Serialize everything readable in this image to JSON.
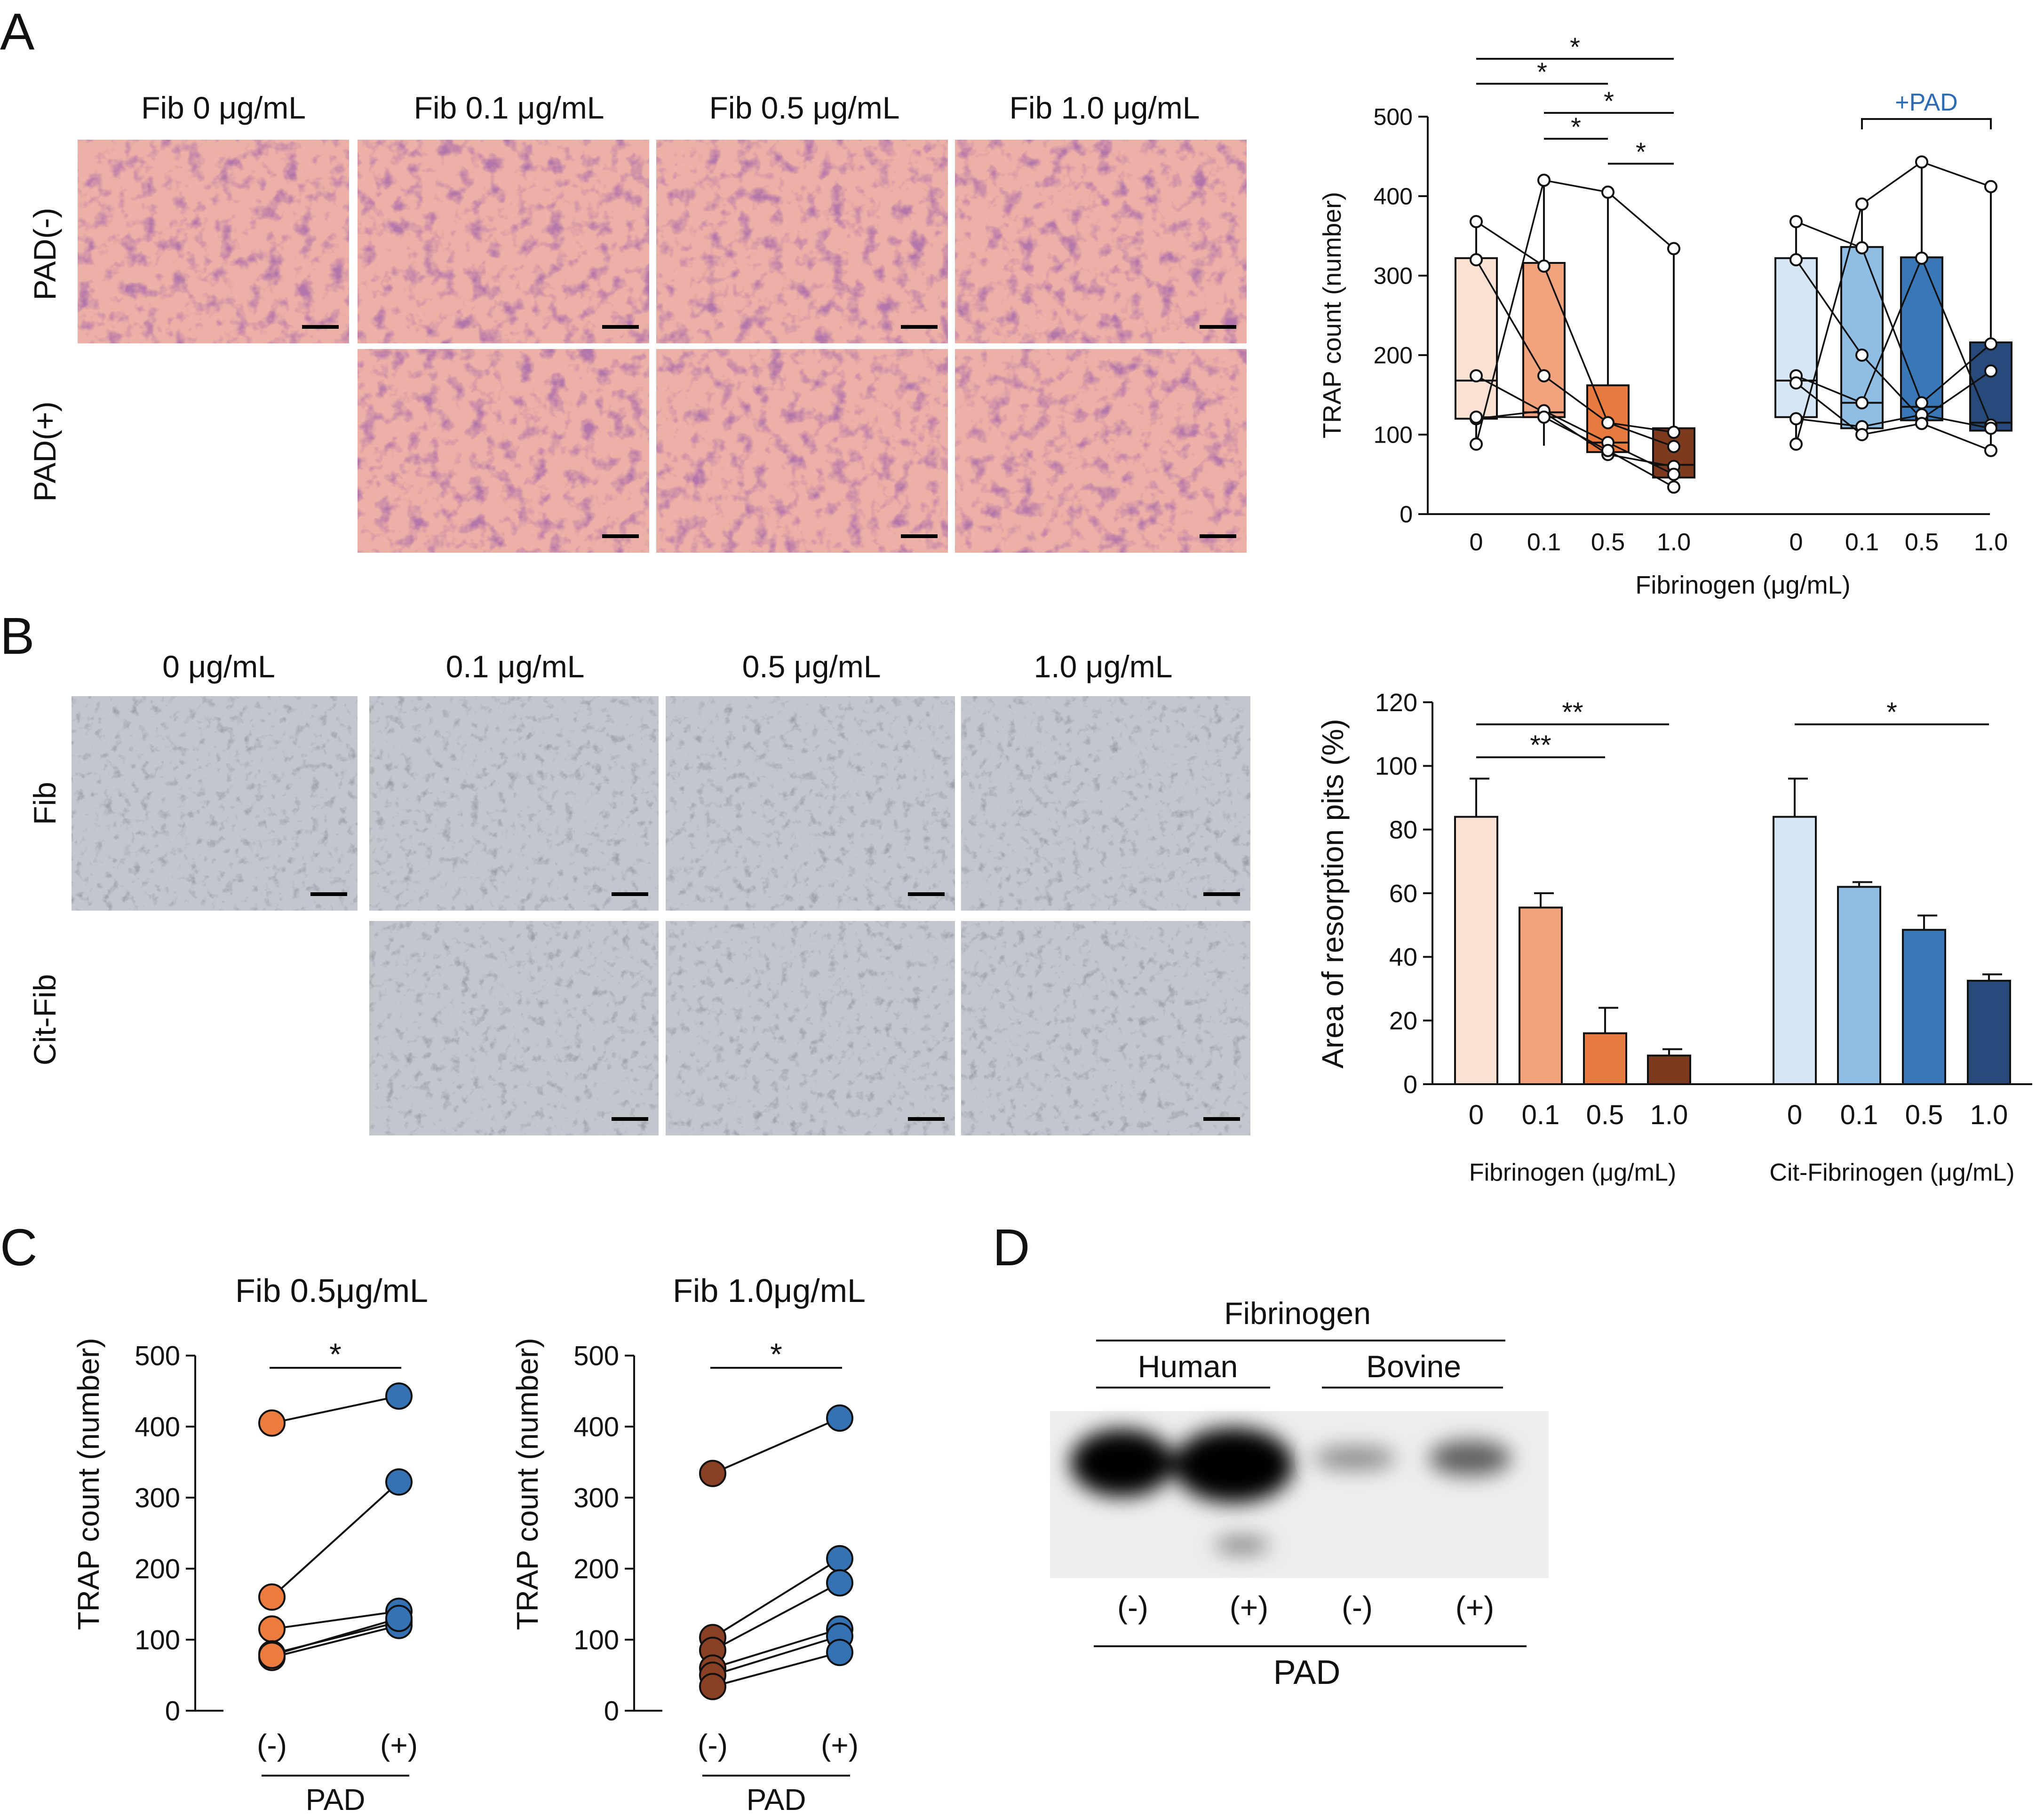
{
  "colors": {
    "orange": [
      "#fbe1d4",
      "#f0a37c",
      "#e8793f",
      "#7d3a1f"
    ],
    "blue": [
      "#d7e6f4",
      "#90bde4",
      "#3a77b6",
      "#274a7a"
    ],
    "pad_label": "#2d6bb5",
    "pink_micro": "#ecb0a6",
    "gray_micro": "#c2c6cd",
    "dot_orange": "#ec7b3e",
    "dot_brown": "#8a4024",
    "dot_blue": "#3472b3"
  },
  "panels": {
    "a": {
      "letter": "A",
      "micro_col_labels": [
        "Fib  0 μg/mL",
        "Fib  0.1 μg/mL",
        "Fib  0.5 μg/mL",
        "Fib  1.0 μg/mL"
      ],
      "micro_row_labels": [
        "PAD(-)",
        "PAD(+)"
      ]
    },
    "b": {
      "letter": "B",
      "micro_col_labels": [
        "0 μg/mL",
        "0.1 μg/mL",
        "0.5 μg/mL",
        "1.0 μg/mL"
      ],
      "micro_row_labels": [
        "Fib",
        "Cit-Fib"
      ]
    },
    "c": {
      "letter": "C"
    },
    "d": {
      "letter": "D",
      "header": "Fibrinogen",
      "groups": [
        "Human",
        "Bovine"
      ],
      "lanes": [
        "(-)",
        "(+)",
        "(-)",
        "(+)"
      ],
      "footer": "PAD"
    }
  },
  "chart_data": [
    {
      "id": "A-box",
      "type": "box",
      "ylabel": "TRAP count (number)",
      "xlabel": "Fibrinogen (μg/mL)",
      "ylim": [
        0,
        500
      ],
      "yticks": [
        0,
        100,
        200,
        300,
        400,
        500
      ],
      "categories": [
        "0",
        "0.1",
        "0.5",
        "1.0"
      ],
      "groups": [
        {
          "name": "Fib",
          "boxes": [
            {
              "q1": 120,
              "median": 168,
              "q3": 322,
              "min": 88,
              "max": 368
            },
            {
              "q1": 122,
              "median": 128,
              "q3": 316,
              "min": 86,
              "max": 420
            },
            {
              "q1": 78,
              "median": 90,
              "q3": 162,
              "min": 72,
              "max": 405
            },
            {
              "q1": 46,
              "median": 62,
              "q3": 108,
              "min": 34,
              "max": 334
            }
          ],
          "samples": [
            [
              88,
              420,
              405,
              334
            ],
            [
              368,
              312,
              115,
              103
            ],
            [
              320,
              174,
              115,
              85
            ],
            [
              174,
              128,
              75,
              60
            ],
            [
              120,
              130,
              90,
              50
            ],
            [
              122,
              122,
              80,
              34
            ]
          ]
        },
        {
          "name": "+PAD",
          "boxes": [
            {
              "q1": 122,
              "median": 168,
              "q3": 322,
              "min": 88,
              "max": 368
            },
            {
              "q1": 108,
              "median": 140,
              "q3": 336,
              "min": 100,
              "max": 390
            },
            {
              "q1": 118,
              "median": 135,
              "q3": 323,
              "min": 114,
              "max": 443
            },
            {
              "q1": 105,
              "median": 115,
              "q3": 216,
              "min": 80,
              "max": 412
            }
          ],
          "samples": [
            [
              88,
              390,
              443,
              412
            ],
            [
              368,
              335,
              140,
              214
            ],
            [
              320,
              200,
              120,
              180
            ],
            [
              174,
              140,
              322,
              112
            ],
            [
              120,
              110,
              125,
              108
            ],
            [
              165,
              100,
              114,
              80
            ]
          ]
        }
      ],
      "significance": [
        {
          "group": 0,
          "from": 0,
          "to": 3,
          "label": "*"
        },
        {
          "group": 0,
          "from": 0,
          "to": 2,
          "label": "*"
        },
        {
          "group": 0,
          "from": 1,
          "to": 3,
          "label": "*"
        },
        {
          "group": 0,
          "from": 1,
          "to": 2,
          "label": "*"
        },
        {
          "group": 0,
          "from": 2,
          "to": 3,
          "label": "*"
        },
        {
          "group": 1,
          "from": 1,
          "to": 3,
          "label": "+PAD",
          "bracket": true
        }
      ]
    },
    {
      "id": "B-bar",
      "type": "bar",
      "ylabel": "Area of resorption pits (%)",
      "ylim": [
        0,
        120
      ],
      "yticks": [
        0,
        20,
        40,
        60,
        80,
        100,
        120
      ],
      "categories": [
        "0",
        "0.1",
        "0.5",
        "1.0"
      ],
      "series": [
        {
          "name": "Fibrinogen (μg/mL)",
          "values": [
            84,
            55.5,
            16,
            9
          ],
          "errors": [
            12,
            4.5,
            8,
            2
          ]
        },
        {
          "name": "Cit-Fibrinogen (μg/mL)",
          "values": [
            84,
            62,
            48.5,
            32.5
          ],
          "errors": [
            12,
            1.5,
            4.5,
            2
          ]
        }
      ],
      "significance": [
        {
          "series": 0,
          "from": 0,
          "to": 3,
          "label": "**"
        },
        {
          "series": 0,
          "from": 0,
          "to": 2,
          "label": "**"
        },
        {
          "series": 1,
          "from": 0,
          "to": 3,
          "label": "*"
        }
      ]
    },
    {
      "id": "C-left",
      "type": "paired-scatter",
      "title": "Fib 0.5μg/mL",
      "ylabel": "TRAP count (number)",
      "xlabel": "PAD",
      "categories": [
        "(-)",
        "(+)"
      ],
      "ylim": [
        0,
        500
      ],
      "yticks": [
        0,
        100,
        200,
        300,
        400,
        500
      ],
      "pairs": [
        [
          405,
          443
        ],
        [
          160,
          322
        ],
        [
          115,
          140
        ],
        [
          80,
          125
        ],
        [
          75,
          120
        ],
        [
          78,
          130
        ]
      ],
      "significance": "*"
    },
    {
      "id": "C-right",
      "type": "paired-scatter",
      "title": "Fib 1.0μg/mL",
      "ylabel": "TRAP count (number)",
      "xlabel": "PAD",
      "categories": [
        "(-)",
        "(+)"
      ],
      "ylim": [
        0,
        500
      ],
      "yticks": [
        0,
        100,
        200,
        300,
        400,
        500
      ],
      "pairs": [
        [
          334,
          412
        ],
        [
          103,
          214
        ],
        [
          85,
          180
        ],
        [
          60,
          115
        ],
        [
          50,
          105
        ],
        [
          34,
          82
        ]
      ],
      "significance": "*"
    }
  ]
}
